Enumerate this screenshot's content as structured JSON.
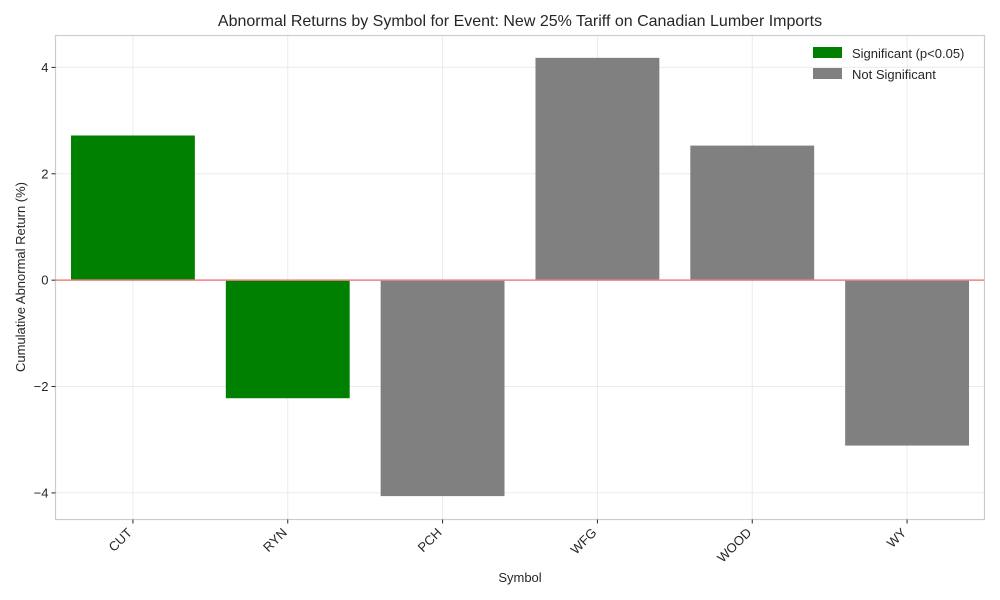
{
  "chart_data": {
    "type": "bar",
    "title": "Abnormal Returns by Symbol for Event: New 25% Tariff on Canadian Lumber Imports",
    "xlabel": "Symbol",
    "ylabel": "Cumulative Abnormal Return (%)",
    "categories": [
      "CUT",
      "RYN",
      "PCH",
      "WFG",
      "WOOD",
      "WY"
    ],
    "values": [
      2.72,
      -2.22,
      -4.06,
      4.18,
      2.53,
      -3.11
    ],
    "significant": [
      true,
      true,
      false,
      false,
      false,
      false
    ],
    "ylim": [
      -4.5,
      4.6
    ],
    "yticks": [
      -4,
      -2,
      0,
      2,
      4
    ],
    "ytick_labels": [
      "−4",
      "−2",
      "0",
      "2",
      "4"
    ],
    "grid": true,
    "zero_line": true,
    "legend": {
      "position": "top-right",
      "entries": [
        {
          "label": "Significant (p<0.05)",
          "color": "#008000"
        },
        {
          "label": "Not Significant",
          "color": "#808080"
        }
      ]
    },
    "colors": {
      "significant": "#008000",
      "not_significant": "#808080",
      "zero_line": "#f08080"
    }
  }
}
